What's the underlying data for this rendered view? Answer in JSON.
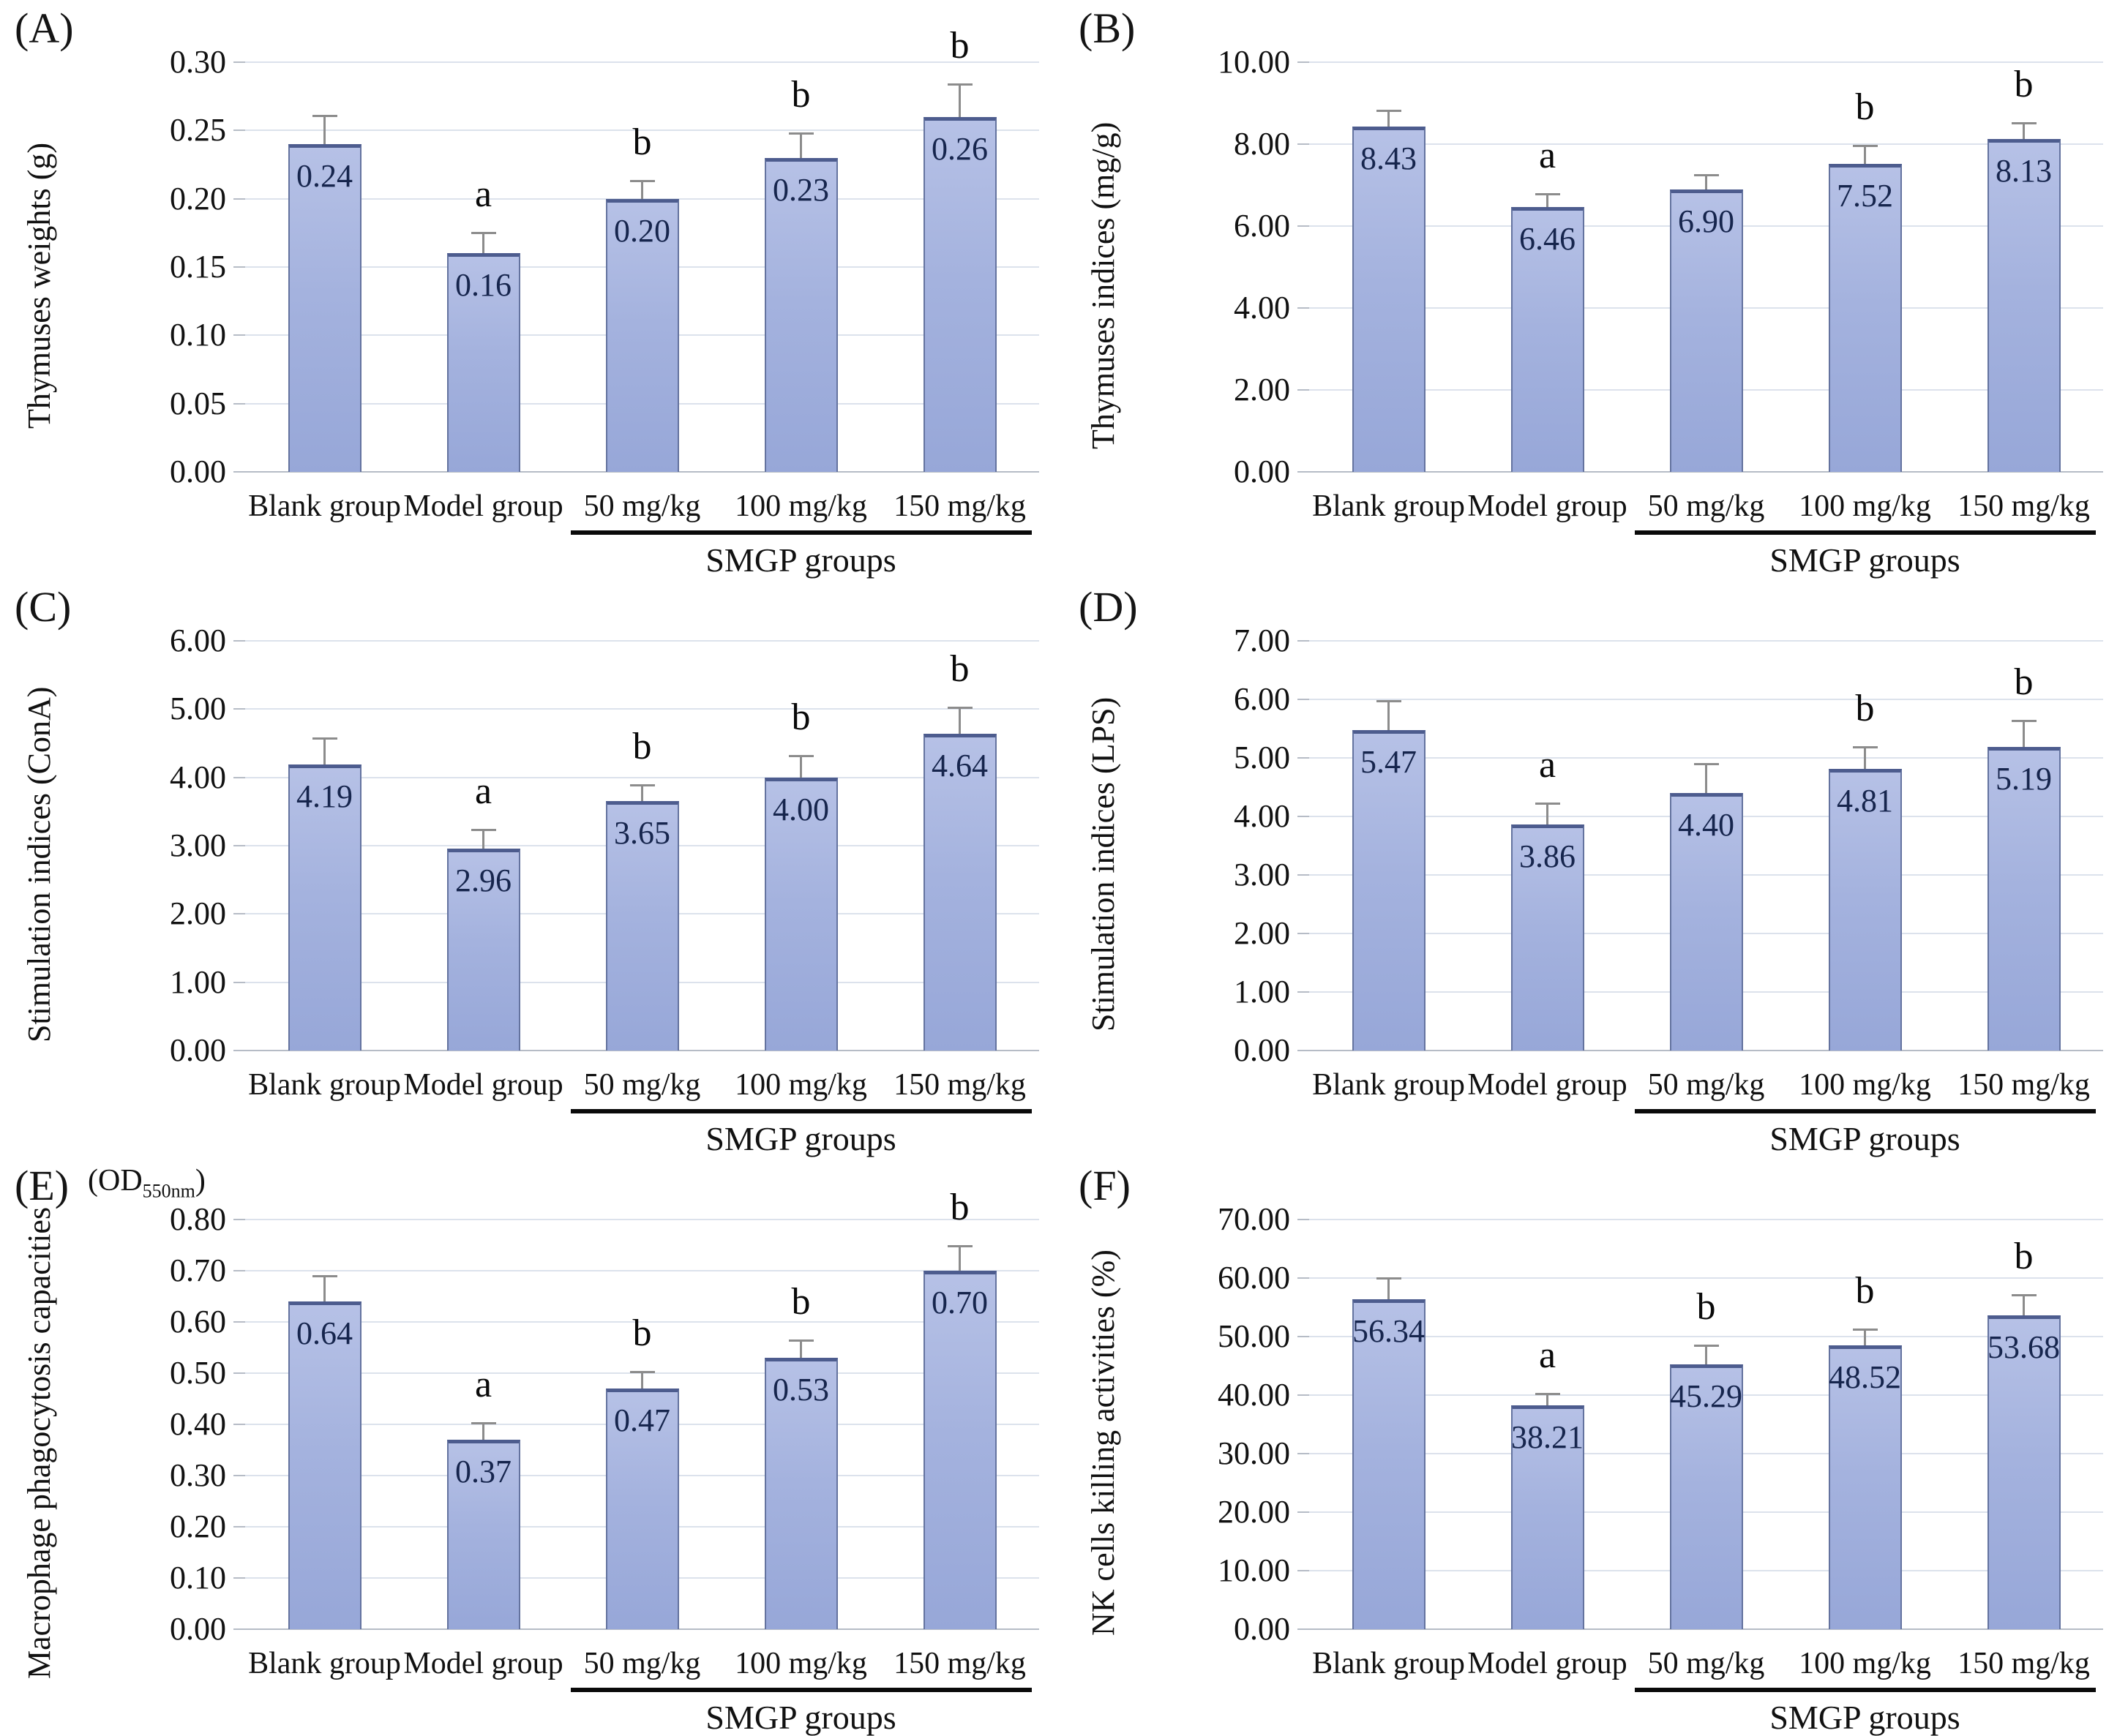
{
  "figure": {
    "background": "#ffffff",
    "bar_fill_top": "#b6c1e6",
    "bar_fill_bottom": "#97a7d8",
    "bar_border": "#64739f",
    "bar_top_edge": "#4d5c8e",
    "value_color": "#16254d",
    "grid_color": "#dce2ec",
    "axis_color": "#b6bcc6",
    "error_color": "#8c8c8c",
    "sig_color": "#0a0a0a",
    "group_label": "SMGP groups",
    "categories": [
      "Blank group",
      "Model group",
      "50 mg/kg",
      "100 mg/kg",
      "150 mg/kg"
    ]
  },
  "chart_data": [
    {
      "type": "bar",
      "panel_label": "(A)",
      "ylabel": "Thymuses weights (g)",
      "categories": [
        "Blank group",
        "Model group",
        "50 mg/kg",
        "100 mg/kg",
        "150 mg/kg"
      ],
      "values": [
        0.24,
        0.16,
        0.2,
        0.23,
        0.26
      ],
      "value_labels": [
        "0.24",
        "0.16",
        "0.20",
        "0.23",
        "0.26"
      ],
      "sig_letters": [
        "",
        "a",
        "b",
        "b",
        "b"
      ],
      "errors": [
        0.021,
        0.015,
        0.013,
        0.018,
        0.024
      ],
      "ylim": [
        0,
        0.3
      ],
      "yticks": [
        "0.30",
        "0.25",
        "0.20",
        "0.15",
        "0.10",
        "0.05",
        "0.00"
      ],
      "grid": true,
      "legend": null,
      "group_label": "SMGP groups"
    },
    {
      "type": "bar",
      "panel_label": "(B)",
      "ylabel": "Thymuses indices (mg/g)",
      "categories": [
        "Blank group",
        "Model group",
        "50 mg/kg",
        "100 mg/kg",
        "150 mg/kg"
      ],
      "values": [
        8.43,
        6.46,
        6.9,
        7.52,
        8.13
      ],
      "value_labels": [
        "8.43",
        "6.46",
        "6.90",
        "7.52",
        "8.13"
      ],
      "sig_letters": [
        "",
        "a",
        "",
        "b",
        "b"
      ],
      "errors": [
        0.4,
        0.33,
        0.35,
        0.45,
        0.38
      ],
      "ylim": [
        0,
        10.0
      ],
      "yticks": [
        "10.00",
        "8.00",
        "6.00",
        "4.00",
        "2.00",
        "0.00"
      ],
      "grid": true,
      "legend": null,
      "group_label": "SMGP groups"
    },
    {
      "type": "bar",
      "panel_label": "(C)",
      "ylabel": "Stimulation indices (ConA)",
      "categories": [
        "Blank group",
        "Model group",
        "50 mg/kg",
        "100 mg/kg",
        "150 mg/kg"
      ],
      "values": [
        4.19,
        2.96,
        3.65,
        4.0,
        4.64
      ],
      "value_labels": [
        "4.19",
        "2.96",
        "3.65",
        "4.00",
        "4.64"
      ],
      "sig_letters": [
        "",
        "a",
        "b",
        "b",
        "b"
      ],
      "errors": [
        0.38,
        0.28,
        0.24,
        0.32,
        0.38
      ],
      "ylim": [
        0,
        6.0
      ],
      "yticks": [
        "6.00",
        "5.00",
        "4.00",
        "3.00",
        "2.00",
        "1.00",
        "0.00"
      ],
      "grid": true,
      "legend": null,
      "group_label": "SMGP groups"
    },
    {
      "type": "bar",
      "panel_label": "(D)",
      "ylabel": "Stimulation indices (LPS)",
      "categories": [
        "Blank group",
        "Model group",
        "50 mg/kg",
        "100 mg/kg",
        "150 mg/kg"
      ],
      "values": [
        5.47,
        3.86,
        4.4,
        4.81,
        5.19
      ],
      "value_labels": [
        "5.47",
        "3.86",
        "4.40",
        "4.81",
        "5.19"
      ],
      "sig_letters": [
        "",
        "a",
        "",
        "b",
        "b"
      ],
      "errors": [
        0.5,
        0.36,
        0.5,
        0.38,
        0.45
      ],
      "ylim": [
        0,
        7.0
      ],
      "yticks": [
        "7.00",
        "6.00",
        "5.00",
        "4.00",
        "3.00",
        "2.00",
        "1.00",
        "0.00"
      ],
      "grid": true,
      "legend": null,
      "group_label": "SMGP groups"
    },
    {
      "type": "bar",
      "panel_label": "(E)",
      "ylabel": "Macrophage phagocytosis capacities",
      "od_prefix": "(OD",
      "od_sub": "550nm",
      "od_suffix": ")",
      "categories": [
        "Blank group",
        "Model group",
        "50 mg/kg",
        "100 mg/kg",
        "150 mg/kg"
      ],
      "values": [
        0.64,
        0.37,
        0.47,
        0.53,
        0.7
      ],
      "value_labels": [
        "0.64",
        "0.37",
        "0.47",
        "0.53",
        "0.70"
      ],
      "sig_letters": [
        "",
        "a",
        "b",
        "b",
        "b"
      ],
      "errors": [
        0.05,
        0.033,
        0.033,
        0.035,
        0.048
      ],
      "ylim": [
        0,
        0.8
      ],
      "yticks": [
        "0.80",
        "0.70",
        "0.60",
        "0.50",
        "0.40",
        "0.30",
        "0.20",
        "0.10",
        "0.00"
      ],
      "grid": true,
      "legend": null,
      "group_label": "SMGP groups"
    },
    {
      "type": "bar",
      "panel_label": "(F)",
      "ylabel": "NK cells killing activities (%)",
      "categories": [
        "Blank group",
        "Model group",
        "50 mg/kg",
        "100 mg/kg",
        "150 mg/kg"
      ],
      "values": [
        56.34,
        38.21,
        45.29,
        48.52,
        53.68
      ],
      "value_labels": [
        "56.34",
        "38.21",
        "45.29",
        "48.52",
        "53.68"
      ],
      "sig_letters": [
        "",
        "a",
        "b",
        "b",
        "b"
      ],
      "errors": [
        3.7,
        2.1,
        3.2,
        2.7,
        3.4
      ],
      "ylim": [
        0,
        70.0
      ],
      "yticks": [
        "70.00",
        "60.00",
        "50.00",
        "40.00",
        "30.00",
        "20.00",
        "10.00",
        "0.00"
      ],
      "grid": true,
      "legend": null,
      "group_label": "SMGP groups"
    }
  ]
}
